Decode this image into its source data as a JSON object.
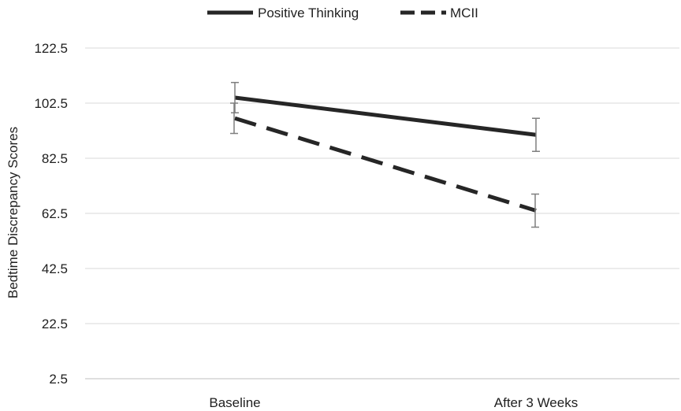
{
  "chart_data": {
    "type": "line",
    "categories": [
      "Baseline",
      "After 3 Weeks"
    ],
    "ylabel": "Bedtime Discrepancy Scores",
    "xlabel": "",
    "ylim": [
      2.5,
      122.5
    ],
    "yticks": [
      "122.5",
      "102.5",
      "82.5",
      "62.5",
      "42.5",
      "22.5",
      "2.5"
    ],
    "grid": "horizontal",
    "legend": "top-center",
    "series": [
      {
        "name": "Positive Thinking",
        "style": "solid",
        "color": "#262626",
        "values": [
          104.5,
          91.0
        ],
        "error": [
          5.5,
          6.0
        ]
      },
      {
        "name": "MCII",
        "style": "dashed",
        "color": "#262626",
        "values": [
          97.0,
          63.5
        ],
        "error": [
          5.5,
          6.0
        ]
      }
    ]
  },
  "colors": {
    "gridline": "#d9d9d9",
    "axis": "#bfbfbf",
    "errorbar": "#7f7f7f",
    "text": "#1f1f1f"
  }
}
